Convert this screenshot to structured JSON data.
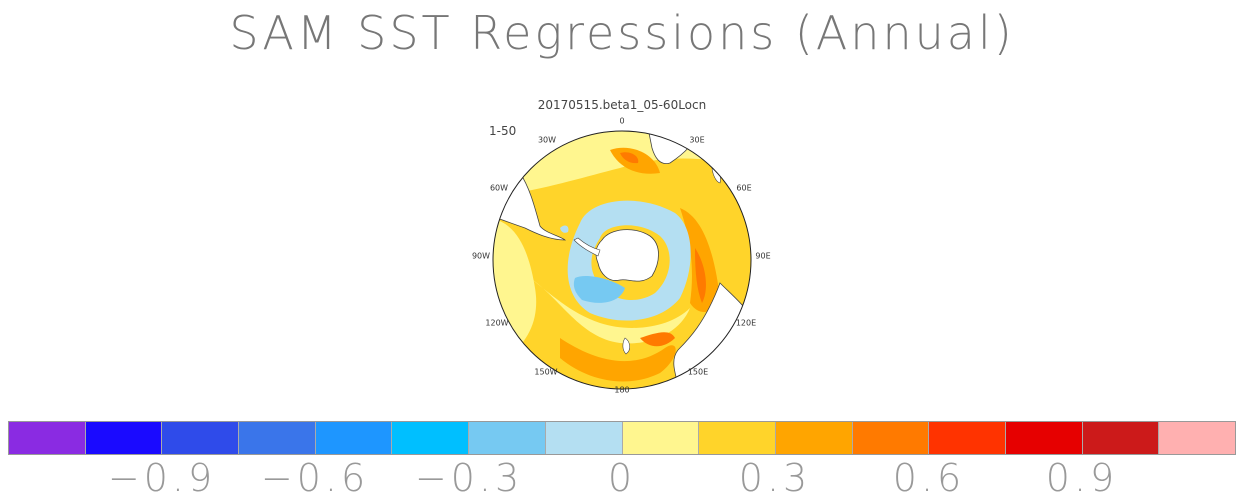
{
  "title": "SAM SST Regressions (Annual)",
  "subtitle": "20170515.beta1_05-60Locn",
  "panel_label": "1-50",
  "map": {
    "projection": "south-polar-stereographic",
    "longitude_labels": [
      "0",
      "30E",
      "60E",
      "90E",
      "120E",
      "150E",
      "180",
      "150W",
      "120W",
      "90W",
      "60W",
      "30W"
    ]
  },
  "colorbar": {
    "colors": [
      "#8a2be2",
      "#1a0aff",
      "#2f4bea",
      "#3a75ea",
      "#1e96ff",
      "#00bfff",
      "#76c9f2",
      "#b4dff2",
      "#fff68f",
      "#ffd42a",
      "#ffa500",
      "#ff7a00",
      "#ff3300",
      "#e60000",
      "#cc1a1a",
      "#ffb0b0"
    ],
    "tick_labels": [
      "-0.9",
      "-0.6",
      "-0.3",
      "0",
      "0.3",
      "0.6",
      "0.9"
    ]
  }
}
